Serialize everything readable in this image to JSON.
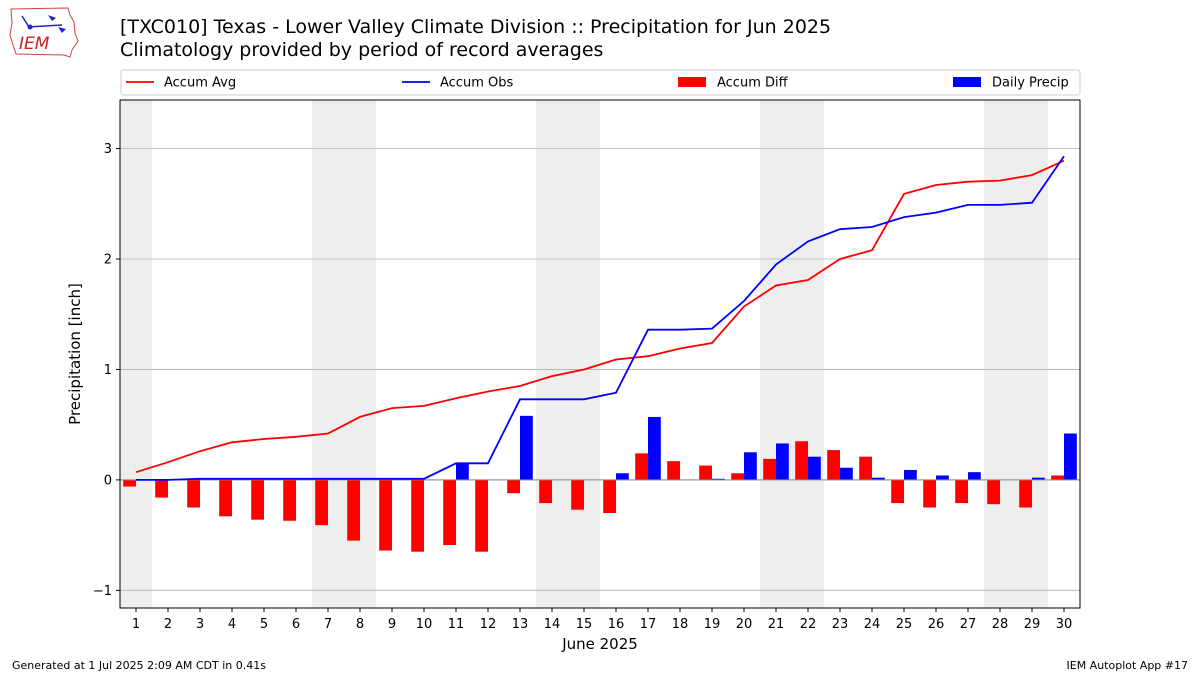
{
  "header": {
    "title": "[TXC010] Texas - Lower Valley Climate Division :: Precipitation for Jun 2025",
    "subtitle": "Climatology provided by period of record averages",
    "logo_text": "IEM"
  },
  "footer": {
    "left": "Generated at 1 Jul 2025 2:09 AM CDT in 0.41s",
    "right": "IEM Autoplot App #17"
  },
  "colors": {
    "accum_avg": "#ff0000",
    "accum_obs": "#0000ff",
    "accum_diff": "#ff0000",
    "daily_precip": "#0000ff",
    "weekend_shade": "#eeeeee",
    "grid": "#b0b0b0"
  },
  "chart_data": {
    "type": "bar",
    "xlabel": "June 2025",
    "ylabel": "Precipitation [inch]",
    "xlim": [
      0.5,
      30.5
    ],
    "ylim": [
      -1.16,
      3.44
    ],
    "x_ticks": [
      1,
      2,
      3,
      4,
      5,
      6,
      7,
      8,
      9,
      10,
      11,
      12,
      13,
      14,
      15,
      16,
      17,
      18,
      19,
      20,
      21,
      22,
      23,
      24,
      25,
      26,
      27,
      28,
      29,
      30
    ],
    "y_ticks": [
      -1,
      0,
      1,
      2,
      3
    ],
    "grid": "horizontal",
    "legend_position": "top",
    "shaded_weekends": [
      [
        0.5,
        1.5
      ],
      [
        6.5,
        8.5
      ],
      [
        13.5,
        15.5
      ],
      [
        20.5,
        22.5
      ],
      [
        27.5,
        29.5
      ]
    ],
    "legend": [
      "Accum Avg",
      "Accum Obs",
      "Accum Diff",
      "Daily Precip"
    ],
    "x": [
      1,
      2,
      3,
      4,
      5,
      6,
      7,
      8,
      9,
      10,
      11,
      12,
      13,
      14,
      15,
      16,
      17,
      18,
      19,
      20,
      21,
      22,
      23,
      24,
      25,
      26,
      27,
      28,
      29,
      30
    ],
    "series": [
      {
        "name": "Accum Avg",
        "type": "line",
        "values": [
          0.07,
          0.16,
          0.26,
          0.34,
          0.37,
          0.39,
          0.42,
          0.57,
          0.65,
          0.67,
          0.74,
          0.8,
          0.85,
          0.94,
          1.0,
          1.09,
          1.12,
          1.19,
          1.24,
          1.57,
          1.76,
          1.81,
          2.0,
          2.08,
          2.59,
          2.67,
          2.7,
          2.71,
          2.76,
          2.89
        ]
      },
      {
        "name": "Accum Obs",
        "type": "line",
        "values": [
          0.0,
          0.0,
          0.01,
          0.01,
          0.01,
          0.01,
          0.01,
          0.01,
          0.01,
          0.01,
          0.15,
          0.15,
          0.73,
          0.73,
          0.73,
          0.79,
          1.36,
          1.36,
          1.37,
          1.62,
          1.95,
          2.16,
          2.27,
          2.29,
          2.38,
          2.42,
          2.49,
          2.49,
          2.51,
          2.93
        ]
      },
      {
        "name": "Accum Diff",
        "type": "bar",
        "values": [
          -0.06,
          -0.16,
          -0.25,
          -0.33,
          -0.36,
          -0.37,
          -0.41,
          -0.55,
          -0.64,
          -0.65,
          -0.59,
          -0.65,
          -0.12,
          -0.21,
          -0.27,
          -0.3,
          0.24,
          0.17,
          0.13,
          0.06,
          0.19,
          0.35,
          0.27,
          0.21,
          -0.21,
          -0.25,
          -0.21,
          -0.22,
          -0.25,
          0.04
        ]
      },
      {
        "name": "Daily Precip",
        "type": "bar",
        "values": [
          0,
          0,
          0,
          0,
          0,
          0,
          0,
          0,
          0,
          0,
          0.15,
          0,
          0.58,
          0,
          0,
          0.06,
          0.57,
          0,
          0.01,
          0.25,
          0.33,
          0.21,
          0.11,
          0.02,
          0.09,
          0.04,
          0.07,
          0,
          0.02,
          0.42
        ]
      }
    ]
  }
}
